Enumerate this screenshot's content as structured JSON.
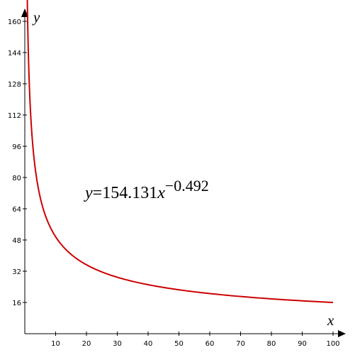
{
  "chart_data": {
    "type": "line",
    "xlabel": "x",
    "ylabel": "y",
    "xlim": [
      0,
      100
    ],
    "ylim": [
      0,
      160
    ],
    "x_ticks": [
      10,
      20,
      30,
      40,
      50,
      60,
      70,
      80,
      90,
      100
    ],
    "y_ticks": [
      16,
      32,
      48,
      64,
      80,
      96,
      112,
      128,
      144,
      160
    ],
    "grid": false,
    "series": [
      {
        "color": "#cc0000",
        "x_range": [
          0.35,
          100
        ],
        "coefficient": 154.131,
        "exponent": -0.492,
        "x": [
          1,
          2,
          5,
          10,
          20,
          30,
          40,
          50,
          60,
          70,
          80,
          90,
          100
        ],
        "y": [
          154.1,
          109.2,
          69.8,
          49.6,
          35.1,
          28.8,
          25.0,
          22.4,
          20.5,
          19.0,
          17.8,
          16.8,
          16.0
        ]
      }
    ],
    "annotation": {
      "y_part": "y",
      "eq_part": "=154.131",
      "x_part": "x",
      "exponent": "−0.492"
    }
  }
}
